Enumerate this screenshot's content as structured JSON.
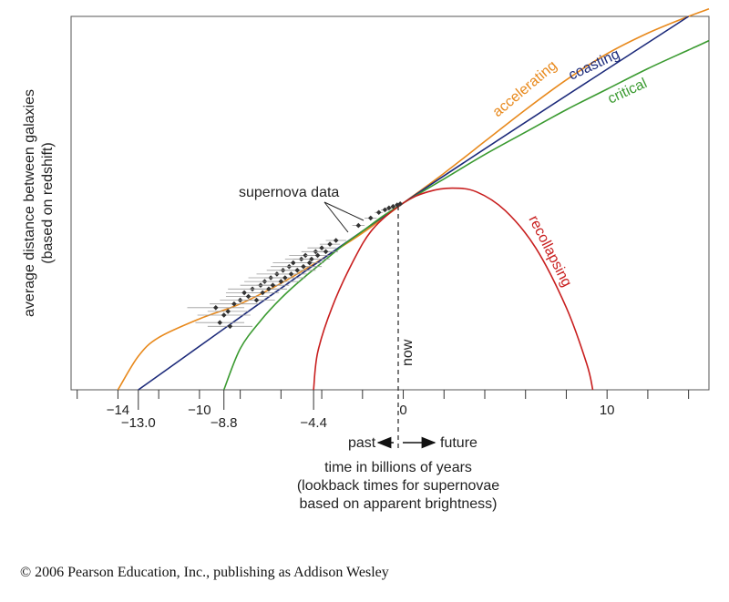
{
  "chart_data": {
    "type": "line",
    "xlabel": [
      "time in billions of years",
      "(lookback times for supernovae",
      "based on apparent brightness)"
    ],
    "ylabel": [
      "average distance between galaxies",
      "(based on redshift)"
    ],
    "xlim": [
      -16.3,
      15
    ],
    "ylim": [
      0,
      1.0
    ],
    "grid": false,
    "ticks_upper": [
      {
        "value": -14,
        "label": "−14"
      },
      {
        "value": -10,
        "label": "−10"
      },
      {
        "value": 0,
        "label": "0"
      },
      {
        "value": 10,
        "label": "10"
      }
    ],
    "ticks_lower": [
      {
        "value": -13.0,
        "label": "−13.0"
      },
      {
        "value": -8.8,
        "label": "−8.8"
      },
      {
        "value": -4.4,
        "label": "−4.4"
      }
    ],
    "minor_ticks": [
      -16,
      -12,
      -8,
      -6,
      -4,
      -2,
      2,
      4,
      6,
      8,
      12,
      14
    ],
    "now_label": "now",
    "past_label": "past",
    "future_label": "future",
    "series": [
      {
        "name": "accelerating",
        "color": "#e8891c",
        "x": [
          -14,
          -13,
          -12,
          -10,
          -8,
          -6,
          -4,
          -2,
          0,
          2,
          4,
          6,
          8,
          10,
          12,
          14,
          15
        ],
        "y": [
          0,
          0.09,
          0.14,
          0.19,
          0.23,
          0.285,
          0.35,
          0.42,
          0.5,
          0.58,
          0.665,
          0.75,
          0.83,
          0.9,
          0.955,
          1.0,
          1.02
        ]
      },
      {
        "name": "coasting",
        "color": "#1c2a7a",
        "x": [
          -13.0,
          0,
          14
        ],
        "y": [
          0,
          0.5,
          1.0
        ]
      },
      {
        "name": "critical",
        "color": "#3a9a30",
        "x": [
          -8.8,
          -8,
          -7,
          -6,
          -5,
          -4,
          -3,
          -2,
          -1,
          0,
          2,
          4,
          6,
          8,
          10,
          12,
          14,
          15
        ],
        "y": [
          0,
          0.11,
          0.185,
          0.245,
          0.295,
          0.34,
          0.385,
          0.425,
          0.465,
          0.5,
          0.565,
          0.63,
          0.69,
          0.75,
          0.805,
          0.86,
          0.91,
          0.935
        ]
      },
      {
        "name": "recollapsing",
        "color": "#c81e1e",
        "x": [
          -4.4,
          -4.2,
          -3.5,
          -2.5,
          -1.5,
          0,
          1.2,
          2.4,
          3.6,
          5,
          6.5,
          8,
          9,
          9.3
        ],
        "y": [
          0,
          0.1,
          0.22,
          0.34,
          0.43,
          0.5,
          0.53,
          0.54,
          0.53,
          0.48,
          0.38,
          0.22,
          0.07,
          0
        ]
      }
    ],
    "supernova_label": "supernova data",
    "supernova_points": [
      {
        "x": -9.2,
        "y": 0.22,
        "err": 1.4
      },
      {
        "x": -9.0,
        "y": 0.18,
        "err": 1.2
      },
      {
        "x": -8.8,
        "y": 0.2,
        "err": 1.3
      },
      {
        "x": -8.6,
        "y": 0.21,
        "err": 1.0
      },
      {
        "x": -8.5,
        "y": 0.17,
        "err": 1.1
      },
      {
        "x": -8.3,
        "y": 0.23,
        "err": 1.2
      },
      {
        "x": -8.0,
        "y": 0.24,
        "err": 1.0
      },
      {
        "x": -7.8,
        "y": 0.26,
        "err": 0.9
      },
      {
        "x": -7.6,
        "y": 0.25,
        "err": 1.1
      },
      {
        "x": -7.4,
        "y": 0.27,
        "err": 1.2
      },
      {
        "x": -7.2,
        "y": 0.24,
        "err": 0.9
      },
      {
        "x": -7.0,
        "y": 0.28,
        "err": 1.0
      },
      {
        "x": -6.9,
        "y": 0.26,
        "err": 0.8
      },
      {
        "x": -6.8,
        "y": 0.29,
        "err": 1.0
      },
      {
        "x": -6.6,
        "y": 0.27,
        "err": 0.9
      },
      {
        "x": -6.5,
        "y": 0.3,
        "err": 1.1
      },
      {
        "x": -6.4,
        "y": 0.28,
        "err": 0.8
      },
      {
        "x": -6.2,
        "y": 0.31,
        "err": 1.0
      },
      {
        "x": -6.0,
        "y": 0.29,
        "err": 0.9
      },
      {
        "x": -5.9,
        "y": 0.32,
        "err": 0.8
      },
      {
        "x": -5.8,
        "y": 0.3,
        "err": 1.0
      },
      {
        "x": -5.6,
        "y": 0.33,
        "err": 0.9
      },
      {
        "x": -5.5,
        "y": 0.31,
        "err": 0.8
      },
      {
        "x": -5.4,
        "y": 0.34,
        "err": 1.0
      },
      {
        "x": -5.2,
        "y": 0.32,
        "err": 0.9
      },
      {
        "x": -5.0,
        "y": 0.35,
        "err": 0.8
      },
      {
        "x": -4.9,
        "y": 0.33,
        "err": 0.9
      },
      {
        "x": -4.8,
        "y": 0.36,
        "err": 0.8
      },
      {
        "x": -4.6,
        "y": 0.34,
        "err": 0.7
      },
      {
        "x": -4.5,
        "y": 0.35,
        "err": 0.9
      },
      {
        "x": -4.3,
        "y": 0.37,
        "err": 0.7
      },
      {
        "x": -4.2,
        "y": 0.36,
        "err": 0.6
      },
      {
        "x": -4.0,
        "y": 0.38,
        "err": 0.7
      },
      {
        "x": -3.8,
        "y": 0.37,
        "err": 0.6
      },
      {
        "x": -3.6,
        "y": 0.39,
        "err": 0.5
      },
      {
        "x": -3.3,
        "y": 0.4,
        "err": 0.5
      },
      {
        "x": -2.2,
        "y": 0.44,
        "err": 0.3
      },
      {
        "x": -1.6,
        "y": 0.46,
        "err": 0.3
      },
      {
        "x": -1.2,
        "y": 0.475,
        "err": 0.2
      },
      {
        "x": -0.9,
        "y": 0.482,
        "err": 0.2
      },
      {
        "x": -0.7,
        "y": 0.487,
        "err": 0.15
      },
      {
        "x": -0.5,
        "y": 0.491,
        "err": 0.1
      },
      {
        "x": -0.3,
        "y": 0.495,
        "err": 0.1
      },
      {
        "x": -0.15,
        "y": 0.498,
        "err": 0.1
      }
    ]
  },
  "copyright": "© 2006 Pearson Education, Inc., publishing as Addison Wesley"
}
